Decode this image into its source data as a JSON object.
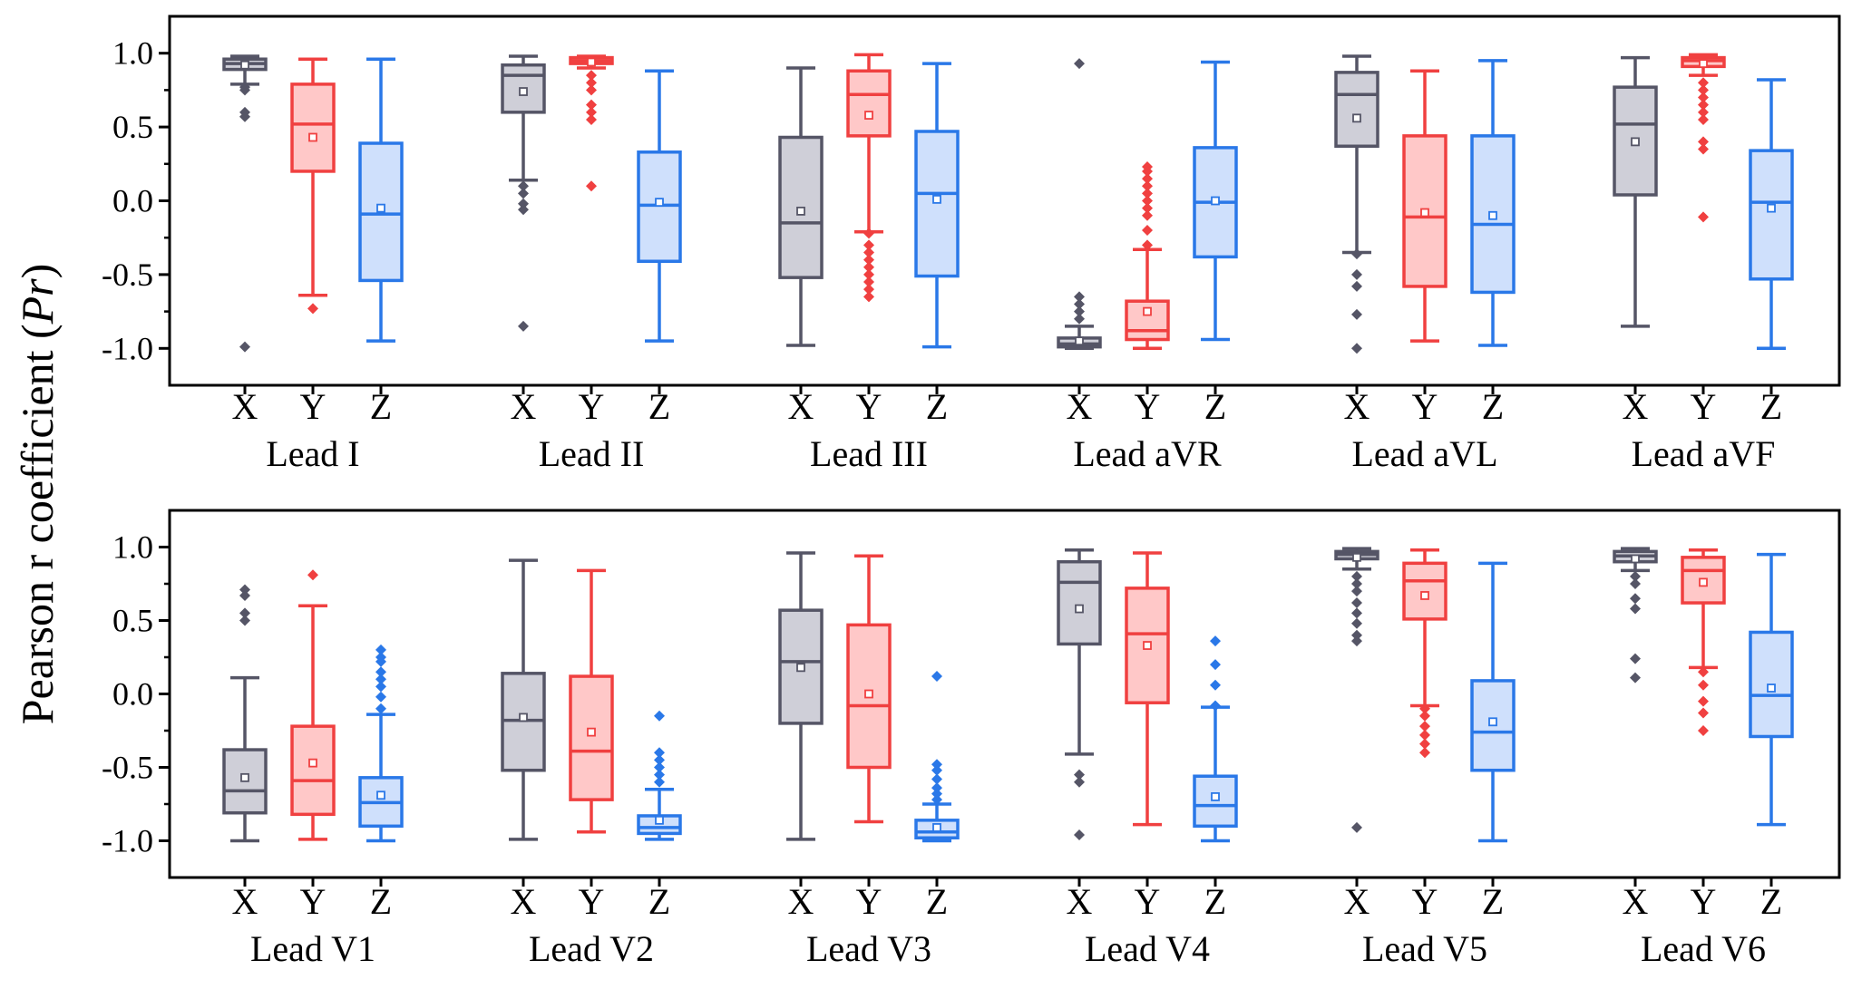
{
  "chart_data": {
    "type": "boxplot",
    "ylabel_prefix": "Pearson r coefficient (",
    "ylabel_symbol": "Pr",
    "ylabel_suffix": ")",
    "ylim": [
      -1.25,
      1.25
    ],
    "yticks": [
      "1.0",
      "0.5",
      "0.0",
      "-0.5",
      "-1.0"
    ],
    "ytick_values": [
      1.0,
      0.5,
      0.0,
      -0.5,
      -1.0
    ],
    "component_labels": [
      "X",
      "Y",
      "Z"
    ],
    "colors": {
      "X": {
        "stroke": "#555566",
        "fill": "#cfcfd8"
      },
      "Y": {
        "stroke": "#f04040",
        "fill": "#ffc8c8"
      },
      "Z": {
        "stroke": "#2a78e8",
        "fill": "#cfe0fc"
      }
    },
    "panels": [
      {
        "leads": [
          {
            "name": "Lead I",
            "boxes": [
              {
                "comp": "X",
                "q1": 0.89,
                "median": 0.93,
                "q3": 0.96,
                "mean": 0.92,
                "wlo": 0.79,
                "whi": 0.98,
                "outliers": [
                  0.77,
                  0.75,
                  0.6,
                  0.57,
                  -0.99
                ]
              },
              {
                "comp": "Y",
                "q1": 0.2,
                "median": 0.52,
                "q3": 0.79,
                "mean": 0.43,
                "wlo": -0.64,
                "whi": 0.96,
                "outliers": [
                  -0.73
                ]
              },
              {
                "comp": "Z",
                "q1": -0.54,
                "median": -0.09,
                "q3": 0.39,
                "mean": -0.05,
                "wlo": -0.95,
                "whi": 0.96,
                "outliers": []
              }
            ]
          },
          {
            "name": "Lead II",
            "boxes": [
              {
                "comp": "X",
                "q1": 0.6,
                "median": 0.85,
                "q3": 0.92,
                "mean": 0.74,
                "wlo": 0.14,
                "whi": 0.98,
                "outliers": [
                  0.1,
                  0.05,
                  -0.02,
                  -0.06,
                  -0.85
                ]
              },
              {
                "comp": "Y",
                "q1": 0.93,
                "median": 0.95,
                "q3": 0.97,
                "mean": 0.94,
                "wlo": 0.9,
                "whi": 0.98,
                "outliers": [
                  0.85,
                  0.8,
                  0.75,
                  0.65,
                  0.6,
                  0.55,
                  0.1
                ]
              },
              {
                "comp": "Z",
                "q1": -0.41,
                "median": -0.03,
                "q3": 0.33,
                "mean": -0.01,
                "wlo": -0.95,
                "whi": 0.88,
                "outliers": []
              }
            ]
          },
          {
            "name": "Lead III",
            "boxes": [
              {
                "comp": "X",
                "q1": -0.52,
                "median": -0.15,
                "q3": 0.43,
                "mean": -0.07,
                "wlo": -0.98,
                "whi": 0.9,
                "outliers": []
              },
              {
                "comp": "Y",
                "q1": 0.44,
                "median": 0.72,
                "q3": 0.88,
                "mean": 0.58,
                "wlo": -0.21,
                "whi": 0.99,
                "outliers": [
                  -0.22,
                  -0.3,
                  -0.35,
                  -0.4,
                  -0.45,
                  -0.5,
                  -0.55,
                  -0.6,
                  -0.65
                ]
              },
              {
                "comp": "Z",
                "q1": -0.51,
                "median": 0.05,
                "q3": 0.47,
                "mean": 0.01,
                "wlo": -0.99,
                "whi": 0.93,
                "outliers": []
              }
            ]
          },
          {
            "name": "Lead aVR",
            "boxes": [
              {
                "comp": "X",
                "q1": -0.99,
                "median": -0.97,
                "q3": -0.93,
                "mean": -0.95,
                "wlo": -1.0,
                "whi": -0.85,
                "outliers": [
                  -0.8,
                  -0.75,
                  -0.7,
                  -0.65,
                  0.93
                ]
              },
              {
                "comp": "Y",
                "q1": -0.94,
                "median": -0.88,
                "q3": -0.68,
                "mean": -0.75,
                "wlo": -1.0,
                "whi": -0.33,
                "outliers": [
                  -0.3,
                  -0.2,
                  -0.1,
                  -0.05,
                  0.0,
                  0.05,
                  0.1,
                  0.15,
                  0.2,
                  0.23
                ]
              },
              {
                "comp": "Z",
                "q1": -0.38,
                "median": -0.01,
                "q3": 0.36,
                "mean": 0.0,
                "wlo": -0.94,
                "whi": 0.94,
                "outliers": []
              }
            ]
          },
          {
            "name": "Lead aVL",
            "boxes": [
              {
                "comp": "X",
                "q1": 0.37,
                "median": 0.72,
                "q3": 0.87,
                "mean": 0.56,
                "wlo": -0.35,
                "whi": 0.98,
                "outliers": [
                  -0.36,
                  -0.5,
                  -0.58,
                  -0.77,
                  -1.0
                ]
              },
              {
                "comp": "Y",
                "q1": -0.58,
                "median": -0.11,
                "q3": 0.44,
                "mean": -0.08,
                "wlo": -0.95,
                "whi": 0.88,
                "outliers": []
              },
              {
                "comp": "Z",
                "q1": -0.62,
                "median": -0.16,
                "q3": 0.44,
                "mean": -0.1,
                "wlo": -0.98,
                "whi": 0.95,
                "outliers": []
              }
            ]
          },
          {
            "name": "Lead aVF",
            "boxes": [
              {
                "comp": "X",
                "q1": 0.04,
                "median": 0.52,
                "q3": 0.77,
                "mean": 0.4,
                "wlo": -0.85,
                "whi": 0.97,
                "outliers": []
              },
              {
                "comp": "Y",
                "q1": 0.91,
                "median": 0.95,
                "q3": 0.97,
                "mean": 0.93,
                "wlo": 0.85,
                "whi": 0.99,
                "outliers": [
                  0.8,
                  0.75,
                  0.7,
                  0.65,
                  0.6,
                  0.55,
                  0.4,
                  0.35,
                  -0.11
                ]
              },
              {
                "comp": "Z",
                "q1": -0.53,
                "median": -0.01,
                "q3": 0.34,
                "mean": -0.05,
                "wlo": -1.0,
                "whi": 0.82,
                "outliers": []
              }
            ]
          }
        ]
      },
      {
        "leads": [
          {
            "name": "Lead V1",
            "boxes": [
              {
                "comp": "X",
                "q1": -0.81,
                "median": -0.66,
                "q3": -0.38,
                "mean": -0.57,
                "wlo": -1.0,
                "whi": 0.11,
                "outliers": [
                  0.5,
                  0.55,
                  0.67,
                  0.71
                ]
              },
              {
                "comp": "Y",
                "q1": -0.82,
                "median": -0.59,
                "q3": -0.22,
                "mean": -0.47,
                "wlo": -0.99,
                "whi": 0.6,
                "outliers": [
                  0.81
                ]
              },
              {
                "comp": "Z",
                "q1": -0.9,
                "median": -0.74,
                "q3": -0.57,
                "mean": -0.69,
                "wlo": -1.0,
                "whi": -0.14,
                "outliers": [
                  -0.1,
                  -0.02,
                  0.05,
                  0.1,
                  0.15,
                  0.22,
                  0.25,
                  0.3
                ]
              }
            ]
          },
          {
            "name": "Lead V2",
            "boxes": [
              {
                "comp": "X",
                "q1": -0.52,
                "median": -0.18,
                "q3": 0.14,
                "mean": -0.16,
                "wlo": -0.99,
                "whi": 0.91,
                "outliers": []
              },
              {
                "comp": "Y",
                "q1": -0.72,
                "median": -0.39,
                "q3": 0.12,
                "mean": -0.26,
                "wlo": -0.94,
                "whi": 0.84,
                "outliers": []
              },
              {
                "comp": "Z",
                "q1": -0.95,
                "median": -0.91,
                "q3": -0.83,
                "mean": -0.86,
                "wlo": -0.99,
                "whi": -0.65,
                "outliers": [
                  -0.6,
                  -0.55,
                  -0.5,
                  -0.45,
                  -0.4,
                  -0.15
                ]
              }
            ]
          },
          {
            "name": "Lead V3",
            "boxes": [
              {
                "comp": "X",
                "q1": -0.2,
                "median": 0.22,
                "q3": 0.57,
                "mean": 0.18,
                "wlo": -0.99,
                "whi": 0.96,
                "outliers": []
              },
              {
                "comp": "Y",
                "q1": -0.5,
                "median": -0.08,
                "q3": 0.47,
                "mean": 0.0,
                "wlo": -0.87,
                "whi": 0.94,
                "outliers": []
              },
              {
                "comp": "Z",
                "q1": -0.98,
                "median": -0.94,
                "q3": -0.86,
                "mean": -0.91,
                "wlo": -1.0,
                "whi": -0.75,
                "outliers": [
                  -0.72,
                  -0.68,
                  -0.64,
                  -0.58,
                  -0.52,
                  -0.48,
                  0.12
                ]
              }
            ]
          },
          {
            "name": "Lead V4",
            "boxes": [
              {
                "comp": "X",
                "q1": 0.34,
                "median": 0.76,
                "q3": 0.9,
                "mean": 0.58,
                "wlo": -0.41,
                "whi": 0.98,
                "outliers": [
                  -0.55,
                  -0.6,
                  -0.96
                ]
              },
              {
                "comp": "Y",
                "q1": -0.06,
                "median": 0.41,
                "q3": 0.72,
                "mean": 0.33,
                "wlo": -0.89,
                "whi": 0.96,
                "outliers": []
              },
              {
                "comp": "Z",
                "q1": -0.9,
                "median": -0.76,
                "q3": -0.56,
                "mean": -0.7,
                "wlo": -1.0,
                "whi": -0.09,
                "outliers": [
                  -0.08,
                  0.06,
                  0.2,
                  0.36
                ]
              }
            ]
          },
          {
            "name": "Lead V5",
            "boxes": [
              {
                "comp": "X",
                "q1": 0.92,
                "median": 0.95,
                "q3": 0.97,
                "mean": 0.93,
                "wlo": 0.85,
                "whi": 0.99,
                "outliers": [
                  0.8,
                  0.75,
                  0.7,
                  0.62,
                  0.55,
                  0.48,
                  0.4,
                  0.36,
                  -0.91
                ]
              },
              {
                "comp": "Y",
                "q1": 0.51,
                "median": 0.77,
                "q3": 0.89,
                "mean": 0.67,
                "wlo": -0.08,
                "whi": 0.98,
                "outliers": [
                  -0.1,
                  -0.15,
                  -0.22,
                  -0.28,
                  -0.34,
                  -0.4
                ]
              },
              {
                "comp": "Z",
                "q1": -0.52,
                "median": -0.26,
                "q3": 0.09,
                "mean": -0.19,
                "wlo": -1.0,
                "whi": 0.89,
                "outliers": []
              }
            ]
          },
          {
            "name": "Lead V6",
            "boxes": [
              {
                "comp": "X",
                "q1": 0.9,
                "median": 0.94,
                "q3": 0.97,
                "mean": 0.92,
                "wlo": 0.84,
                "whi": 0.99,
                "outliers": [
                  0.8,
                  0.75,
                  0.65,
                  0.58,
                  0.24,
                  0.11
                ]
              },
              {
                "comp": "Y",
                "q1": 0.62,
                "median": 0.84,
                "q3": 0.93,
                "mean": 0.76,
                "wlo": 0.18,
                "whi": 0.98,
                "outliers": [
                  0.15,
                  0.06,
                  -0.05,
                  -0.13,
                  -0.25
                ]
              },
              {
                "comp": "Z",
                "q1": -0.29,
                "median": -0.01,
                "q3": 0.42,
                "mean": 0.04,
                "wlo": -0.89,
                "whi": 0.95,
                "outliers": []
              }
            ]
          }
        ]
      }
    ]
  }
}
